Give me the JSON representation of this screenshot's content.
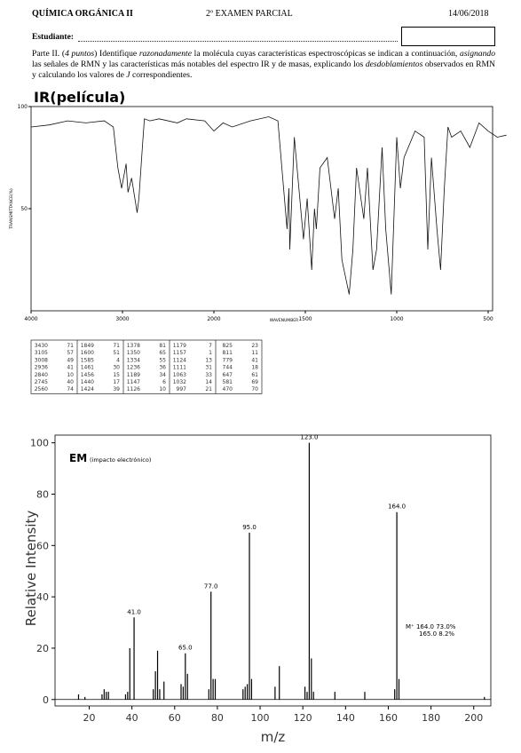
{
  "header": {
    "course": "QUÍMICA ORGÁNICA II",
    "exam": "2º EXAMEN PARCIAL",
    "date": "14/06/2018",
    "student_label": "Estudiante:"
  },
  "instructions": [
    {
      "text": "Parte II. (",
      "italic": false
    },
    {
      "text": "4 puntos",
      "italic": true
    },
    {
      "text": ") Identifique ",
      "italic": false
    },
    {
      "text": "razonadamente",
      "italic": true
    },
    {
      "text": " la molécula cuyas características espectroscópicas se indican a continuación, ",
      "italic": false
    },
    {
      "text": "asignando",
      "italic": true
    },
    {
      "text": " las señales de RMN y las características más notables del espectro IR y de masas, explicando los ",
      "italic": false
    },
    {
      "text": "desdoblamientos",
      "italic": true
    },
    {
      "text": " observados en RMN y calculando los valores de ",
      "italic": false
    },
    {
      "text": "J",
      "italic": true
    },
    {
      "text": " correspondientes.",
      "italic": false
    }
  ],
  "ir": {
    "title": "IR(película)",
    "x_label": "WAVENUMBER",
    "y_label": "TRANSMITTANCE(%)",
    "xlim": [
      4000,
      400
    ],
    "xticks": [
      4000,
      3000,
      2000,
      1500,
      1000,
      500
    ],
    "ylim": [
      0,
      100
    ],
    "yticks": [
      100,
      50
    ],
    "color": "#111111",
    "wavenumber": [
      4000,
      3800,
      3600,
      3400,
      3200,
      3100,
      3050,
      3010,
      2960,
      2940,
      2900,
      2840,
      2820,
      2780,
      2760,
      2700,
      2600,
      2400,
      2300,
      2100,
      2000,
      1950,
      1900,
      1800,
      1700,
      1650,
      1600,
      1590,
      1585,
      1560,
      1510,
      1490,
      1465,
      1450,
      1440,
      1420,
      1380,
      1340,
      1320,
      1300,
      1260,
      1240,
      1220,
      1180,
      1160,
      1130,
      1110,
      1080,
      1060,
      1030,
      1000,
      980,
      960,
      900,
      850,
      830,
      810,
      780,
      760,
      740,
      720,
      700,
      650,
      600,
      550,
      500,
      450,
      400
    ],
    "transmittance": [
      90,
      91,
      93,
      92,
      93,
      90,
      70,
      60,
      72,
      58,
      65,
      48,
      55,
      82,
      94,
      93,
      94,
      92,
      94,
      93,
      88,
      92,
      90,
      93,
      95,
      93,
      40,
      60,
      30,
      85,
      35,
      55,
      20,
      50,
      40,
      70,
      75,
      45,
      60,
      25,
      8,
      30,
      70,
      45,
      70,
      20,
      30,
      80,
      40,
      8,
      85,
      60,
      75,
      88,
      85,
      30,
      75,
      40,
      20,
      60,
      90,
      85,
      88,
      80,
      92,
      88,
      85,
      86
    ]
  },
  "ir_table": {
    "rows": [
      [
        3430,
        71,
        1849,
        71,
        1378,
        81,
        1179,
        7,
        825,
        23
      ],
      [
        3105,
        57,
        1600,
        51,
        1350,
        65,
        1157,
        1,
        811,
        11
      ],
      [
        3008,
        49,
        1585,
        4,
        1334,
        55,
        1124,
        13,
        779,
        41
      ],
      [
        2936,
        41,
        1461,
        30,
        1236,
        36,
        1111,
        31,
        744,
        18
      ],
      [
        2840,
        10,
        1456,
        15,
        1189,
        34,
        1063,
        33,
        647,
        61
      ],
      [
        2745,
        40,
        1440,
        17,
        1147,
        6,
        1032,
        14,
        581,
        69
      ],
      [
        2560,
        74,
        1424,
        39,
        1126,
        10,
        997,
        21,
        470,
        70
      ]
    ]
  },
  "chart_data": {
    "type": "bar",
    "title": "EM",
    "subtitle": "(impacto electrónico)",
    "x_label": "m/z",
    "y_label": "Relative Intensity",
    "color": "#000000",
    "x": [
      15,
      18,
      26,
      27,
      28,
      29,
      37,
      38,
      39,
      41,
      50,
      51,
      52,
      53,
      55,
      63,
      64,
      65,
      66,
      76,
      77,
      78,
      79,
      92,
      93,
      94,
      95,
      96,
      107,
      109,
      121,
      122,
      123,
      124,
      125,
      135,
      149,
      163,
      164,
      165,
      205
    ],
    "values": [
      2,
      1,
      2,
      4,
      3,
      3,
      2,
      3,
      20,
      32,
      4,
      11,
      19,
      4,
      7,
      6,
      5,
      18,
      10,
      4,
      42,
      8,
      8,
      4,
      5,
      6,
      65,
      8,
      5,
      13,
      5,
      3,
      100,
      16,
      3,
      3,
      3,
      4,
      73,
      8,
      1
    ],
    "x_labels": [
      null,
      null,
      null,
      null,
      null,
      null,
      null,
      null,
      null,
      "41.0",
      null,
      null,
      null,
      null,
      null,
      null,
      null,
      "65.0",
      null,
      null,
      "77.0",
      null,
      null,
      null,
      null,
      null,
      "95.0",
      null,
      null,
      null,
      null,
      null,
      "123.0",
      null,
      null,
      null,
      null,
      null,
      "164.0",
      null,
      null
    ],
    "xlim": [
      4,
      208
    ],
    "xticks": [
      20,
      40,
      60,
      80,
      100,
      120,
      140,
      160,
      180,
      200
    ],
    "ylim": [
      -2.5,
      103
    ],
    "yticks": [
      0,
      20,
      40,
      60,
      80,
      100
    ],
    "annotations": [
      "M⁺ 164.0  73.0%",
      "165.0  8.2%"
    ]
  }
}
